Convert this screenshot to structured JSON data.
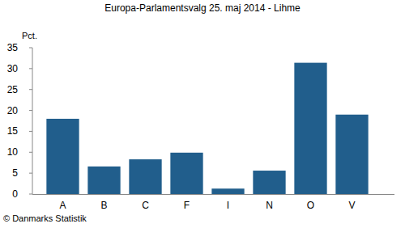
{
  "chart_data": {
    "type": "bar",
    "title": "Europa-Parlamentsvalg 25. maj 2014 - Lihme",
    "y_label": "Pct.",
    "source": "© Danmarks Statistik",
    "categories": [
      "A",
      "B",
      "C",
      "F",
      "I",
      "N",
      "O",
      "V"
    ],
    "values": [
      18.0,
      6.6,
      8.3,
      9.9,
      1.3,
      5.6,
      31.4,
      19.0
    ],
    "color": "#215e8c",
    "ylim": [
      0,
      35
    ],
    "yticks": [
      0,
      5,
      10,
      15,
      20,
      25,
      30,
      35
    ],
    "grid": false
  }
}
